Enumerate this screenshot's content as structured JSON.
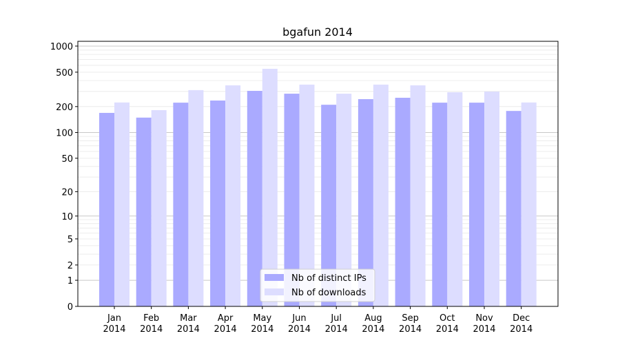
{
  "chart_data": {
    "type": "bar",
    "title": "bgafun 2014",
    "xlabel": "",
    "ylabel": "",
    "yscale": "log10(1+y)",
    "ylim": [
      0,
      1000
    ],
    "yticks": [
      0,
      1,
      2,
      5,
      10,
      20,
      50,
      100,
      200,
      500,
      1000
    ],
    "grid": true,
    "legend_position": "bottom-center",
    "categories": [
      "Jan\n2014",
      "Feb\n2014",
      "Mar\n2014",
      "Apr\n2014",
      "May\n2014",
      "Jun\n2014",
      "Jul\n2014",
      "Aug\n2014",
      "Sep\n2014",
      "Oct\n2014",
      "Nov\n2014",
      "Dec\n2014"
    ],
    "series": [
      {
        "name": "Nb of distinct IPs",
        "color": "#aaaaff",
        "values": [
          169,
          149,
          222,
          235,
          304,
          282,
          210,
          244,
          253,
          222,
          222,
          178
        ]
      },
      {
        "name": "Nb of downloads",
        "color": "#ddddff",
        "values": [
          223,
          182,
          310,
          352,
          547,
          359,
          282,
          359,
          352,
          293,
          298,
          223
        ]
      }
    ]
  }
}
